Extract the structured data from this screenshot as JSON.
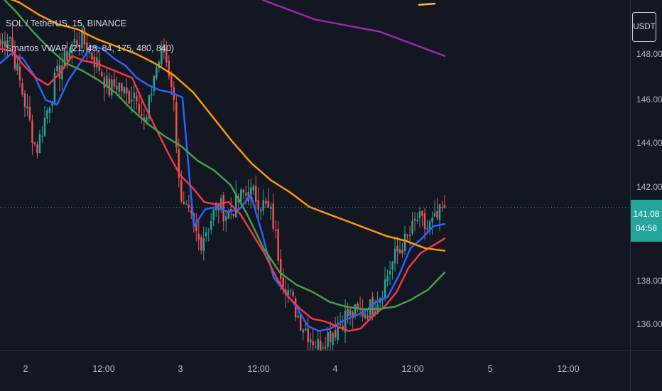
{
  "header": {
    "symbol_line": "SOL / TetherUS, 15, BINANCE",
    "indicator_line": "Smartos VWAP (21, 48, 84, 175, 480, 840)"
  },
  "price_axis": {
    "currency_label": "USDT",
    "ticks": [
      "148.00",
      "146.00",
      "144.00",
      "142.00",
      "138.00",
      "136.00"
    ],
    "last_price": "141.08",
    "countdown": "04:58"
  },
  "time_axis": {
    "ticks": [
      "2",
      "12:00",
      "3",
      "12:00",
      "4",
      "12:00",
      "5",
      "12:00"
    ]
  },
  "colors": {
    "background": "#131722",
    "up": "#26a69a",
    "down": "#ef5350",
    "vwap_21": "#2962ff",
    "vwap_48": "#f23645",
    "vwap_84": "#43a047",
    "vwap_175": "#ff9800",
    "vwap_480": "#9c27b0",
    "vwap_840": "#ffb74d"
  },
  "chart_data": {
    "type": "line",
    "title": "SOL / TetherUS, 15, BINANCE",
    "ylim": [
      135.2,
      149.6
    ],
    "x_tick_labels": [
      "2",
      "12:00",
      "3",
      "12:00",
      "4",
      "12:00",
      "5",
      "12:00"
    ],
    "price_line": 141.08,
    "close_anchors": [
      147.7,
      148.3,
      146.5,
      145.0,
      143.4,
      144.8,
      146.2,
      147.1,
      147.8,
      148.0,
      147.4,
      146.8,
      145.9,
      146.2,
      145.6,
      145.9,
      144.3,
      146.6,
      147.6,
      146.1,
      141.0,
      140.6,
      139.6,
      140.4,
      141.2,
      140.8,
      141.2,
      141.7,
      141.6,
      141.2,
      140.7,
      138.4,
      137.4,
      136.5,
      135.9,
      135.4,
      135.8,
      136.1,
      136.6,
      136.7,
      136.8,
      137.0,
      137.6,
      138.6,
      139.4,
      139.8,
      140.6,
      140.2,
      140.5,
      141.1
    ],
    "series": [
      {
        "name": "VWAP 21",
        "values": [
          147.0,
          147.4,
          147.2,
          146.5,
          145.5,
          145.3,
          146.3,
          147.0,
          147.7,
          147.6,
          147.2,
          146.9,
          146.4,
          146.1,
          145.9,
          145.8,
          145.6,
          140.3,
          141.0,
          141.1,
          140.9,
          141.0,
          141.6,
          140.0,
          138.2,
          137.6,
          137.0,
          136.2,
          136.0,
          136.1,
          136.4,
          136.6,
          136.8,
          137.2,
          137.4,
          138.3,
          139.4,
          139.8,
          140.3,
          140.4
        ]
      },
      {
        "name": "VWAP 48",
        "values": [
          147.6,
          147.5,
          146.9,
          146.4,
          146.1,
          146.6,
          147.3,
          147.1,
          147.0,
          146.8,
          146.6,
          146.4,
          145.3,
          144.3,
          143.3,
          142.4,
          141.9,
          141.3,
          141.2,
          141.3,
          140.8,
          140.0,
          139.2,
          138.2,
          137.4,
          136.9,
          136.5,
          136.4,
          136.2,
          136.0,
          136.1,
          136.6,
          137.0,
          137.6,
          138.6,
          139.2,
          139.5,
          139.8
        ]
      },
      {
        "name": "VWAP 84",
        "values": [
          149.8,
          149.1,
          148.3,
          147.6,
          147.0,
          146.7,
          146.3,
          145.8,
          145.1,
          144.5,
          144.0,
          143.6,
          143.0,
          142.6,
          142.0,
          140.8,
          139.4,
          138.4,
          137.9,
          137.6,
          137.2,
          137.0,
          136.9,
          136.9,
          137.0,
          137.3,
          137.7,
          138.4
        ]
      },
      {
        "name": "VWAP 175",
        "values": [
          149.8,
          149.5,
          149.0,
          148.6,
          148.4,
          148.0,
          147.7,
          147.4,
          147.0,
          146.5,
          145.8,
          144.8,
          143.8,
          142.9,
          142.2,
          141.7,
          141.1,
          140.8,
          140.5,
          140.2,
          139.9,
          139.7,
          139.4,
          139.3
        ]
      },
      {
        "name": "VWAP 480",
        "values": [
          149.6,
          149.4,
          149.2,
          149.0,
          148.8,
          148.7,
          148.6,
          148.5,
          148.4,
          148.3,
          148.1,
          147.9,
          147.7,
          147.5,
          147.3
        ]
      },
      {
        "name": "VWAP 840",
        "values": [
          149.4,
          149.45
        ]
      }
    ]
  }
}
